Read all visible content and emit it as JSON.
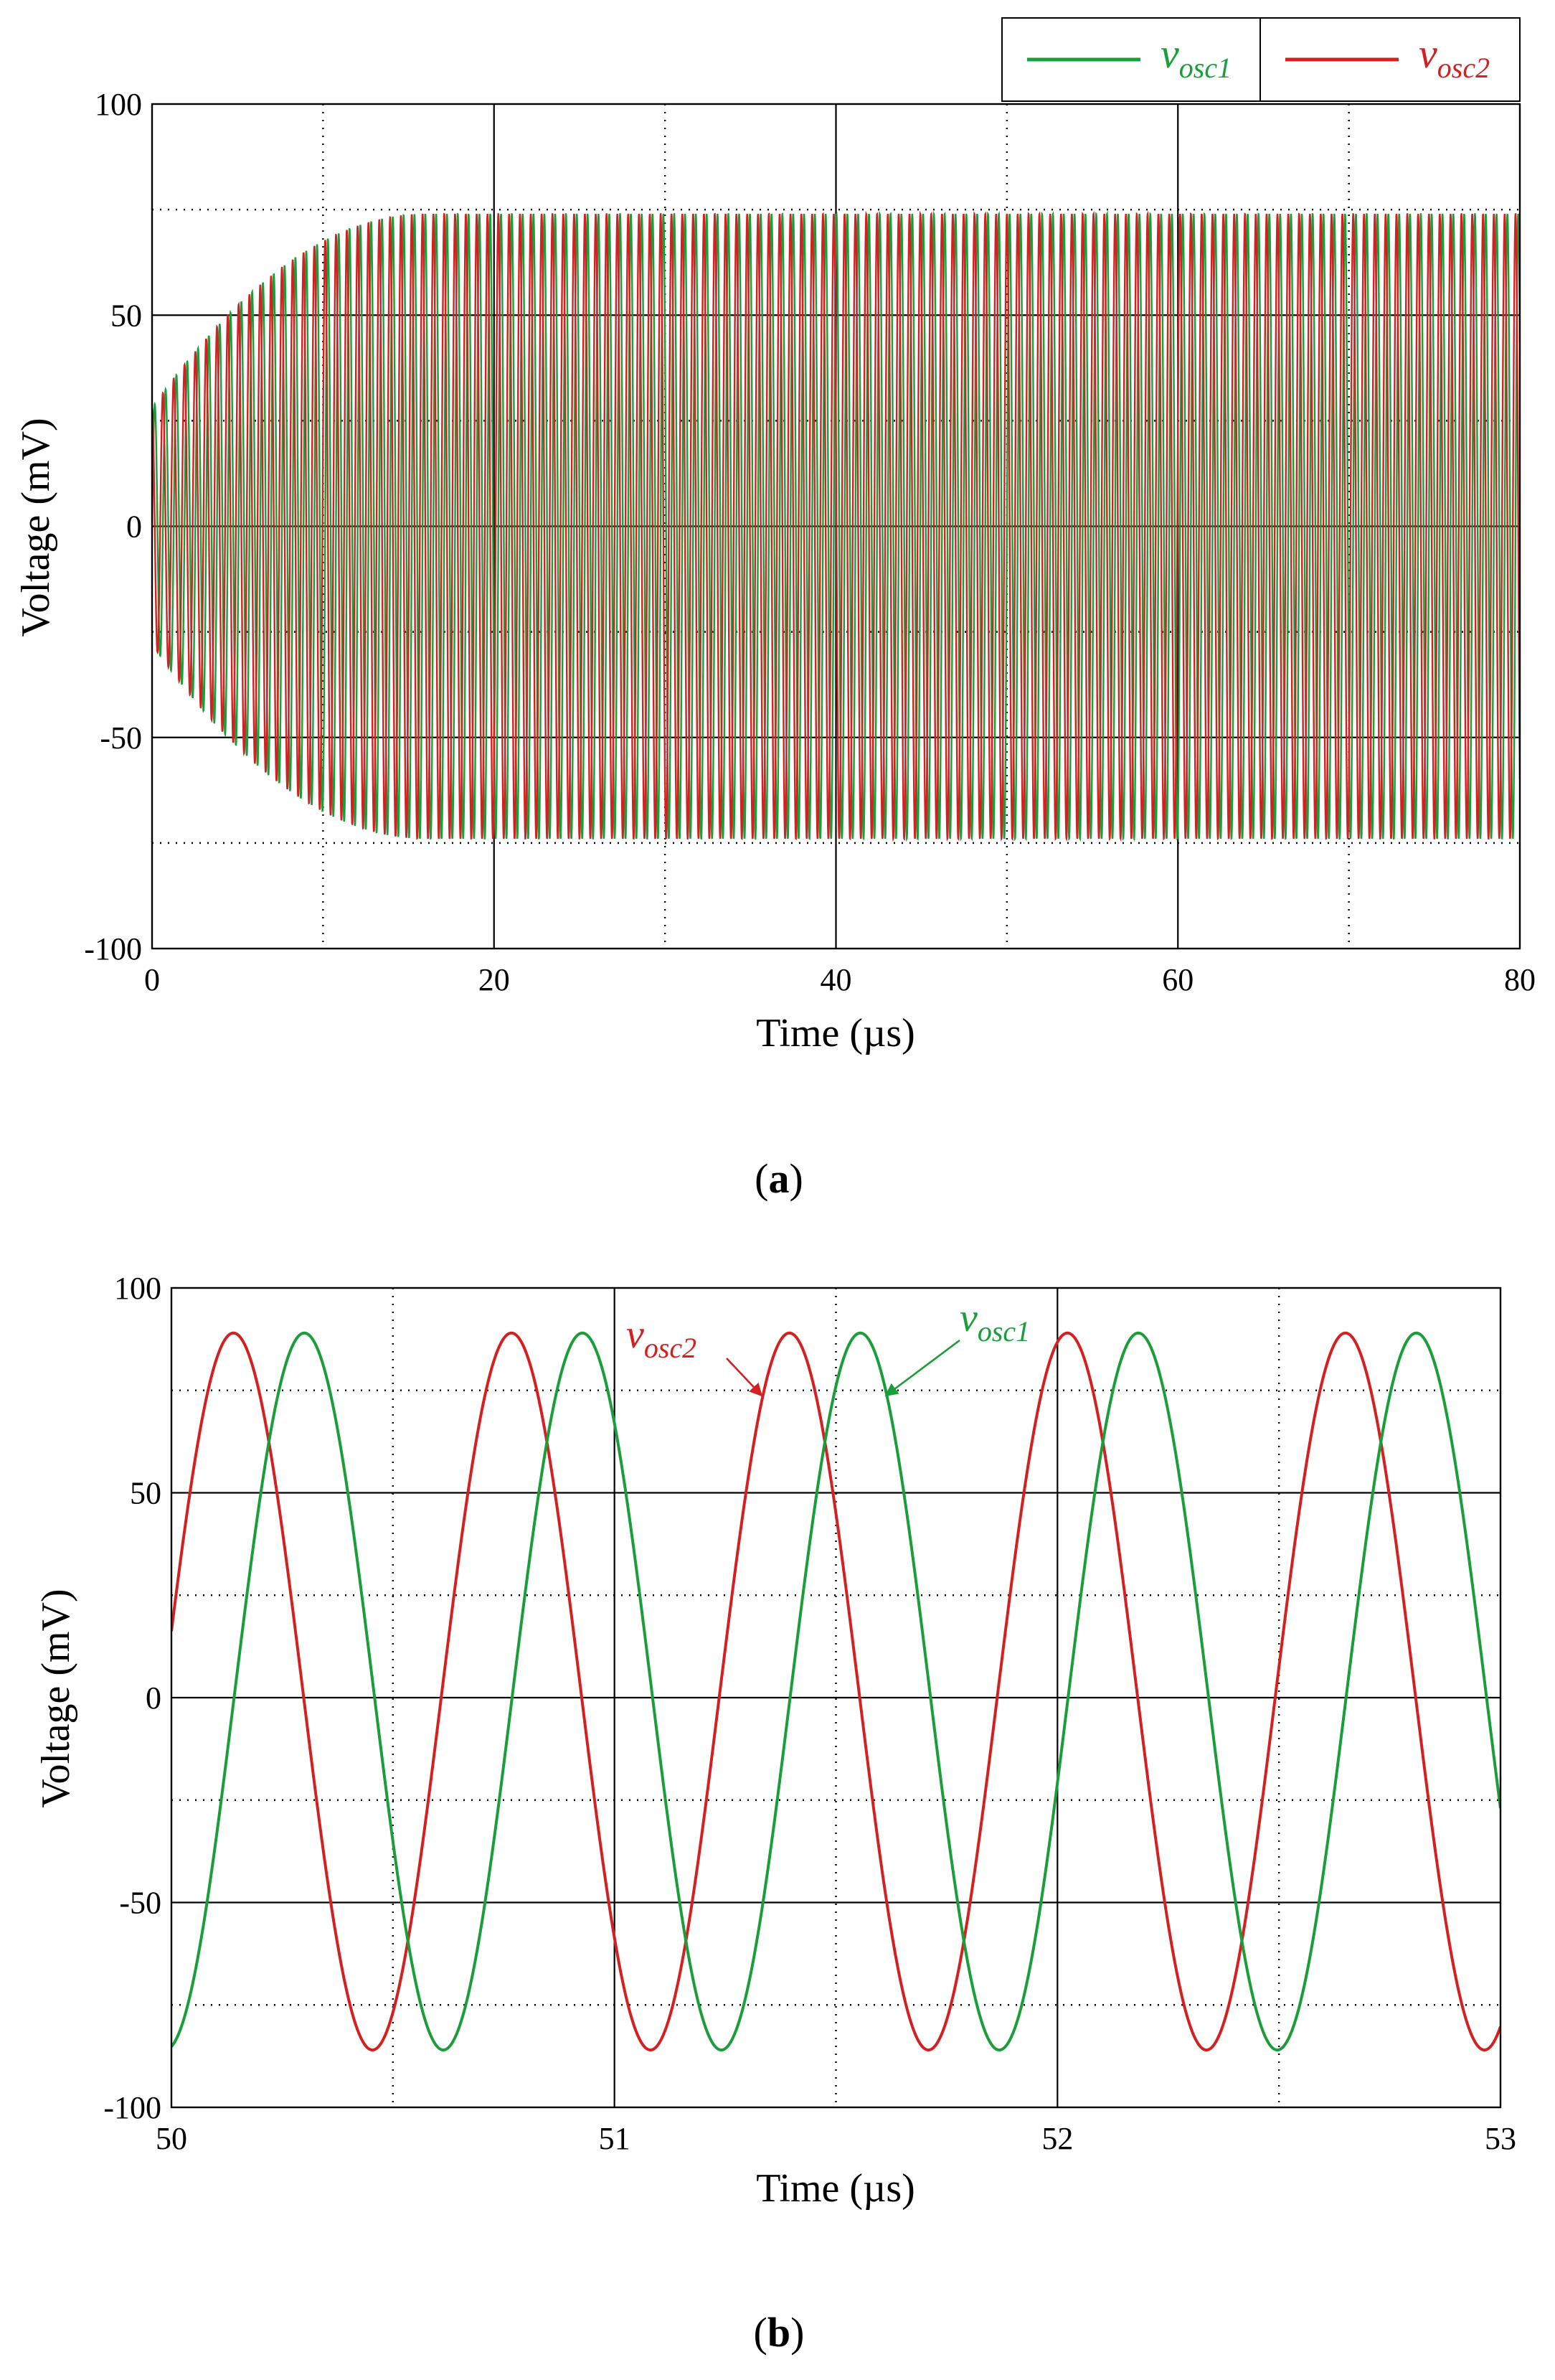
{
  "chart_data": [
    {
      "type": "line",
      "panel_label": "a",
      "xlabel": "Time (µs)",
      "ylabel": "Voltage (mV)",
      "xlim": [
        0,
        80
      ],
      "ylim": [
        -100,
        100
      ],
      "xticks": [
        0,
        20,
        40,
        60,
        80
      ],
      "yticks": [
        -100,
        -50,
        0,
        50,
        100
      ],
      "grid": true,
      "legend_position": "top-right",
      "series": [
        {
          "name": "osc1",
          "color": "#1a9e3a",
          "frequency_per_us": 1.58,
          "phase_deg": 0,
          "initial_amplitude_mV": 28,
          "final_amplitude_mV": 74,
          "settle_time_us": 16
        },
        {
          "name": "osc2",
          "color": "#d42020",
          "frequency_per_us": 1.58,
          "phase_deg": 90,
          "initial_amplitude_mV": 28,
          "final_amplitude_mV": 74,
          "settle_time_us": 16
        }
      ]
    },
    {
      "type": "line",
      "panel_label": "b",
      "xlabel": "Time (µs)",
      "ylabel": "Voltage (mV)",
      "xlim": [
        50,
        53
      ],
      "ylim": [
        -100,
        100
      ],
      "xticks": [
        50,
        51,
        52,
        53
      ],
      "yticks": [
        -100,
        -50,
        0,
        50,
        100
      ],
      "grid": true,
      "series": [
        {
          "name": "osc1",
          "color": "#1a9e3a",
          "peak_times_us": [
            50.3,
            50.93,
            51.56,
            52.18,
            52.81
          ],
          "max_mV": 89,
          "min_mV": -86
        },
        {
          "name": "osc2",
          "color": "#d42020",
          "peak_times_us": [
            50.14,
            50.77,
            51.4,
            52.02,
            52.65
          ],
          "max_mV": 89,
          "min_mV": -86
        }
      ]
    }
  ],
  "legend": {
    "items": [
      {
        "v": "v",
        "sub": "osc1",
        "color": "#1a9e3a"
      },
      {
        "v": "v",
        "sub": "osc2",
        "color": "#d42020"
      }
    ]
  },
  "annotations": {
    "osc1": {
      "v": "v",
      "sub": "osc1"
    },
    "osc2": {
      "v": "v",
      "sub": "osc2"
    }
  }
}
